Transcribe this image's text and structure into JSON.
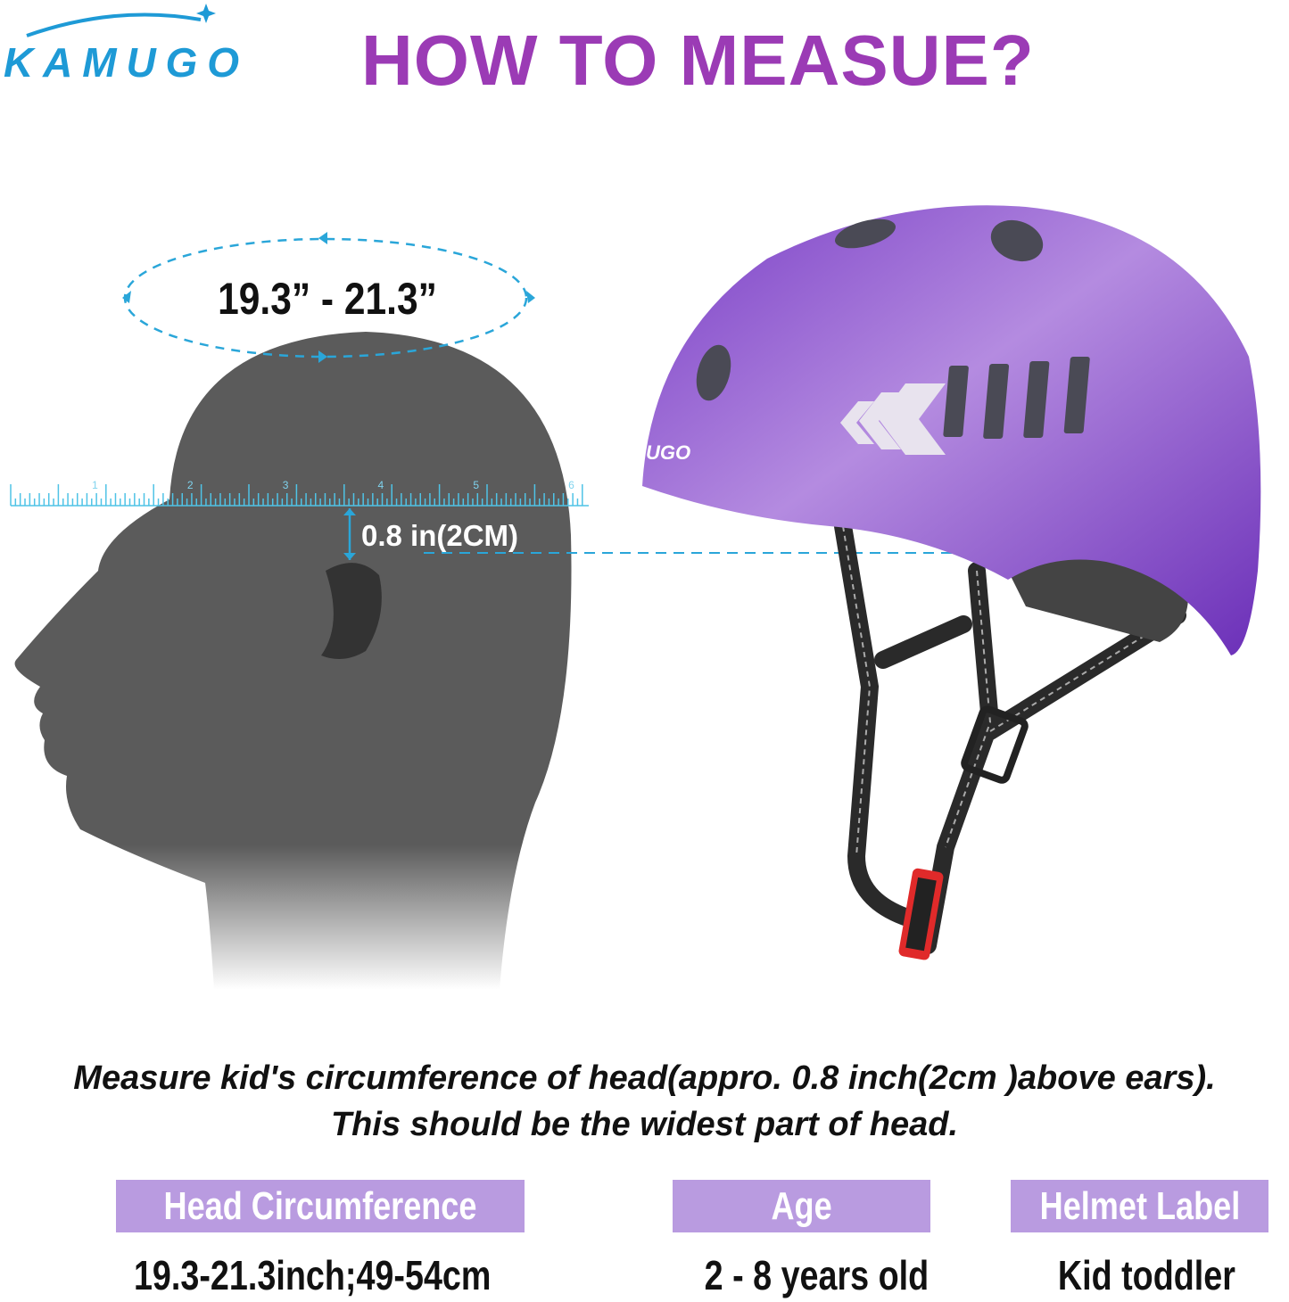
{
  "brand": {
    "logo_text": "KAMUGO",
    "color": "#1e9ad6"
  },
  "title": "HOW TO MEASUE?",
  "diagram": {
    "circumference_range": "19.3” - 21.3”",
    "ruler_labels": [
      "1",
      "2",
      "3",
      "4",
      "5",
      "6"
    ],
    "offset_label": "0.8 in(2CM)",
    "helmet_logo_text": "KAMUGO"
  },
  "instructions": {
    "line1": "Measure kid's circumference of head(appro. 0.8 inch(2cm )above ears).",
    "line2": "This should be the widest part of head."
  },
  "specs": [
    {
      "label": "Head Circumference",
      "value": "19.3-21.3inch;49-54cm"
    },
    {
      "label": "Age",
      "value": "2 - 8 years old"
    },
    {
      "label": "Helmet Label",
      "value": "Kid toddler"
    }
  ],
  "colors": {
    "title": "#9b3bb5",
    "label_bg": "#b99be0",
    "helmet": "#8a4fd0",
    "head": "#5b5b5b",
    "measure_line": "#2aa6d9"
  }
}
